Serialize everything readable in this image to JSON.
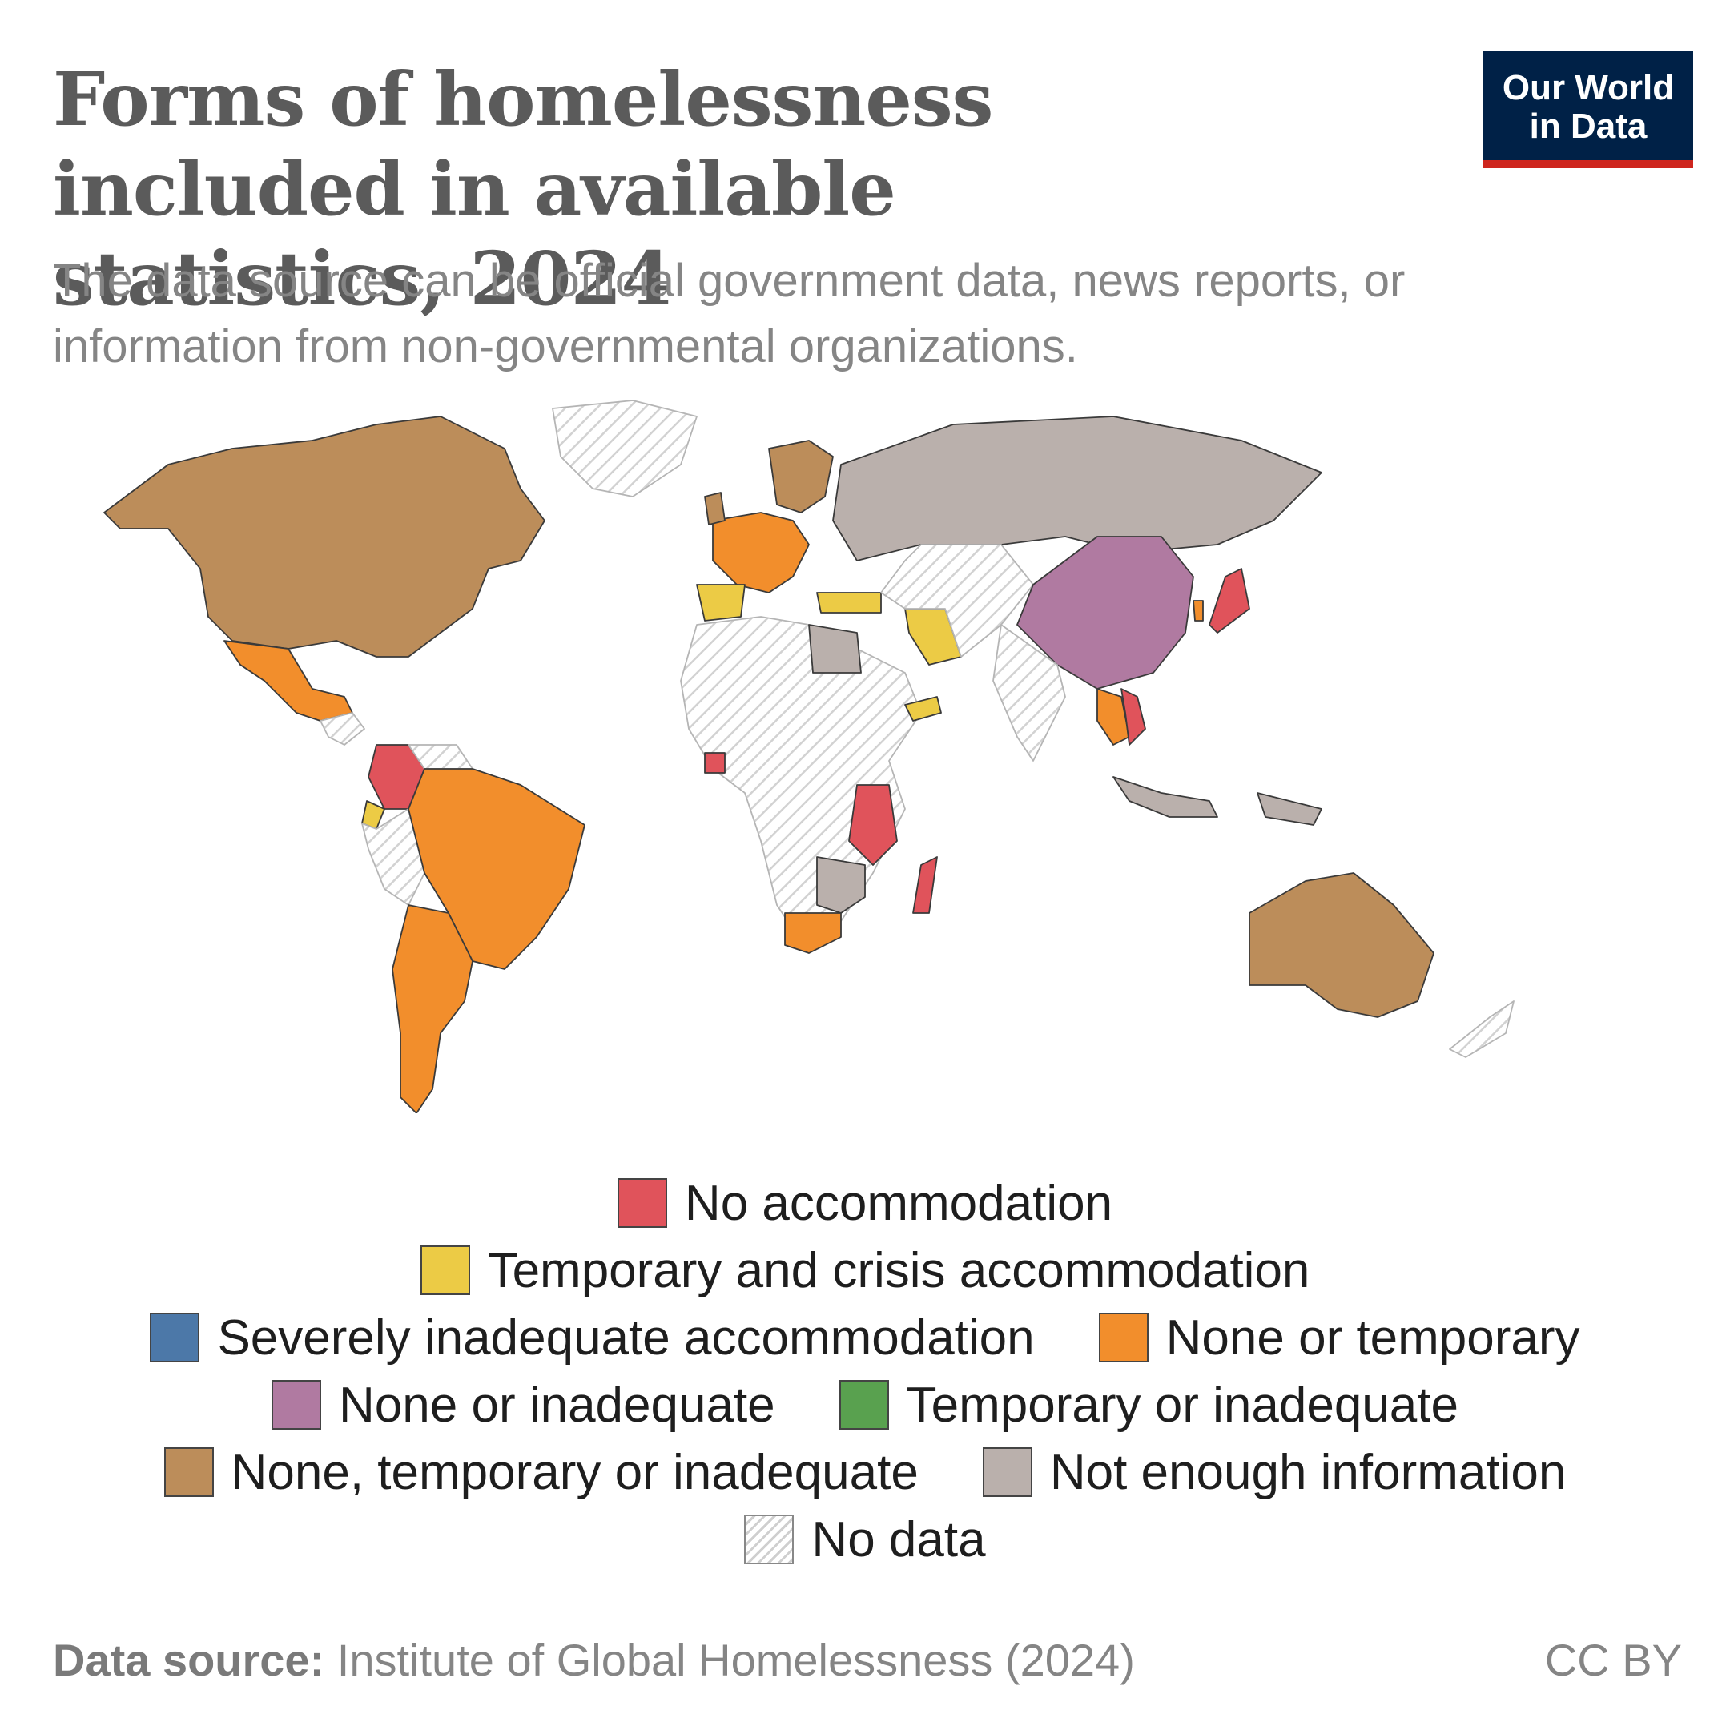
{
  "header": {
    "title": "Forms of homelessness included in available statistics, 2024",
    "subtitle": "The data source can be official government data, news reports, or information from non-governmental organizations.",
    "logo_line1": "Our World",
    "logo_line2": "in Data"
  },
  "colors": {
    "no_accommodation": "#e0535b",
    "temporary_crisis": "#eccb45",
    "severely_inadequate": "#4c78a8",
    "none_or_temporary": "#f28e2c",
    "none_or_inadequate": "#b07aa1",
    "temporary_or_inadequate": "#59a14f",
    "none_temporary_inadequate": "#bc8d5a",
    "not_enough_info": "#bab0ac",
    "no_data": "#ffffff"
  },
  "legend": {
    "items": [
      {
        "key": "no_accommodation",
        "label": "No accommodation"
      },
      {
        "key": "temporary_crisis",
        "label": "Temporary and crisis accommodation"
      },
      {
        "key": "severely_inadequate",
        "label": "Severely inadequate accommodation"
      },
      {
        "key": "none_or_temporary",
        "label": "None or temporary"
      },
      {
        "key": "none_or_inadequate",
        "label": "None or inadequate"
      },
      {
        "key": "temporary_or_inadequate",
        "label": "Temporary or inadequate"
      },
      {
        "key": "none_temporary_inadequate",
        "label": "None, temporary or inadequate"
      },
      {
        "key": "not_enough_info",
        "label": "Not enough information"
      },
      {
        "key": "no_data",
        "label": "No data"
      }
    ]
  },
  "footer": {
    "source_label": "Data source:",
    "source_text": " Institute of Global Homelessness (2024)",
    "license": "CC BY"
  }
}
